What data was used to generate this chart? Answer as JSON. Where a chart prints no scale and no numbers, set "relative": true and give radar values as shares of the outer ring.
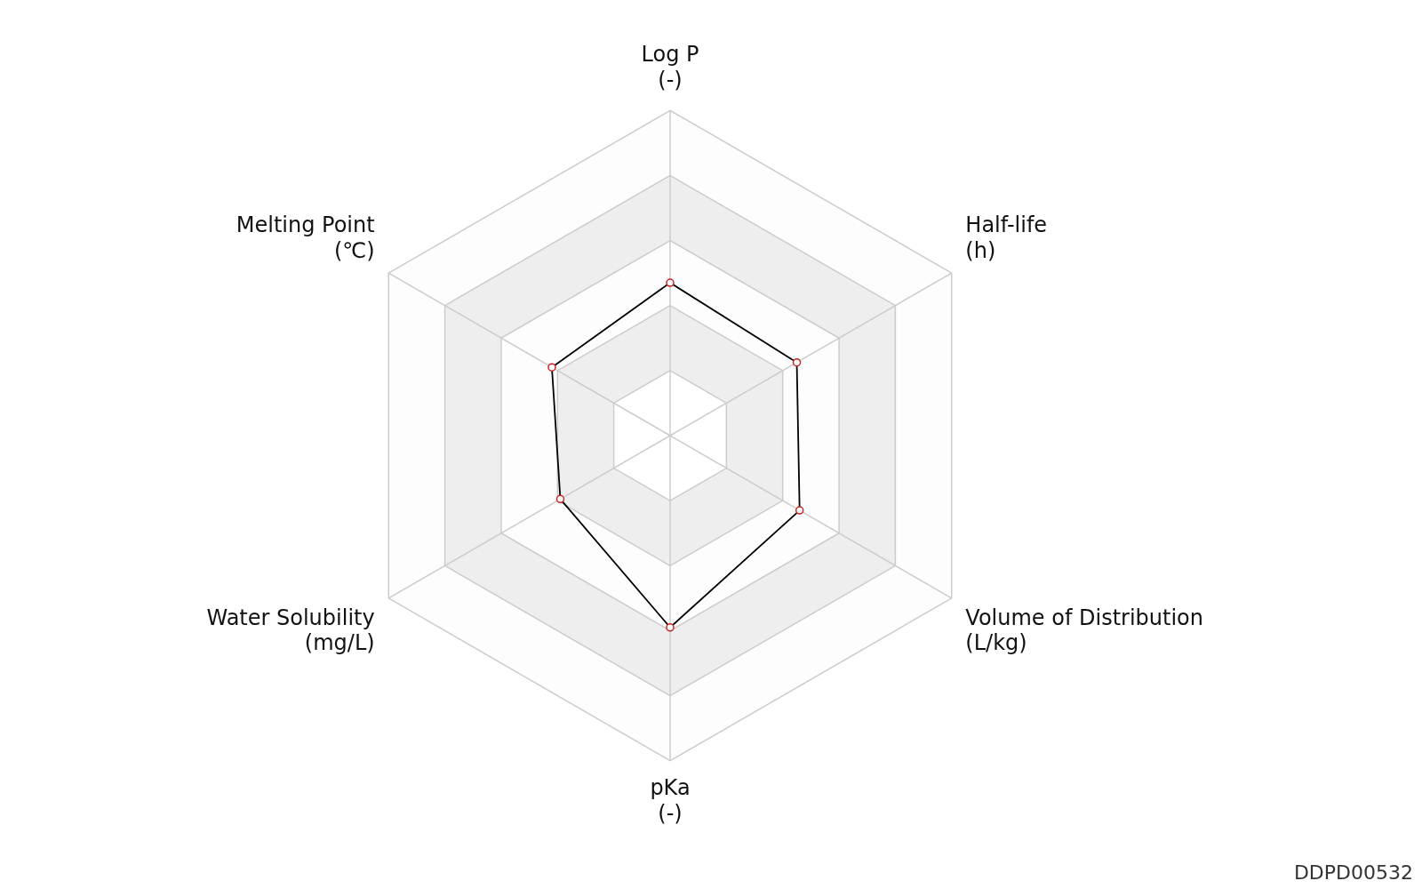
{
  "chart_data": {
    "type": "radar",
    "relative": true,
    "categories": [
      "Log P (-)",
      "Half-life (h)",
      "Volume of Distribution (L/kg)",
      "pKa (-)",
      "Water Solubility (mg/L)",
      "Melting Point (℃)"
    ],
    "series": [
      {
        "color": "#000000",
        "values": [
          0.47,
          0.45,
          0.46,
          0.59,
          0.39,
          0.42
        ]
      }
    ],
    "grid": true,
    "legend": false,
    "marker": "circle",
    "line_style": "solid",
    "annotations": [
      "DDPD00532"
    ]
  }
}
